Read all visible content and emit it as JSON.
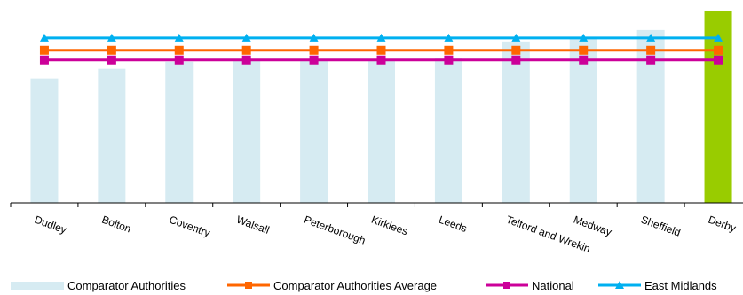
{
  "chart_data": {
    "type": "bar",
    "categories": [
      "Dudley",
      "Bolton",
      "Coventry",
      "Walsall",
      "Peterborough",
      "Kirklees",
      "Leeds",
      "Telford and Wrekin",
      "Medway",
      "Sheffield",
      "Derby"
    ],
    "series": [
      {
        "name": "Comparator Authorities",
        "kind": "bar",
        "color": "#d6ebf2",
        "values": [
          141,
          152,
          160,
          161,
          162,
          163,
          164,
          183,
          186,
          196,
          null
        ]
      },
      {
        "name": "Derby",
        "kind": "bar-highlight",
        "color": "#99cc00",
        "values": [
          null,
          null,
          null,
          null,
          null,
          null,
          null,
          null,
          null,
          null,
          218
        ]
      },
      {
        "name": "Comparator Authorities Average",
        "kind": "line",
        "color": "#ff6600",
        "marker": "square",
        "values": [
          173,
          173,
          173,
          173,
          173,
          173,
          173,
          173,
          173,
          173,
          173
        ]
      },
      {
        "name": "National",
        "kind": "line",
        "color": "#cc0099",
        "marker": "square",
        "values": [
          162,
          162,
          162,
          162,
          162,
          162,
          162,
          162,
          162,
          162,
          162
        ]
      },
      {
        "name": "East Midlands",
        "kind": "line",
        "color": "#00b0f0",
        "marker": "triangle",
        "values": [
          187,
          187,
          187,
          187,
          187,
          187,
          187,
          187,
          187,
          187,
          187
        ]
      }
    ],
    "ylim": [
      0,
      220
    ],
    "grid": false,
    "legend_position": "bottom"
  },
  "legend": [
    {
      "label": "Comparator Authorities",
      "color": "#d6ebf2",
      "marker": "box"
    },
    {
      "label": "Comparator Authorities Average",
      "color": "#ff6600",
      "marker": "square"
    },
    {
      "label": "National",
      "color": "#cc0099",
      "marker": "square"
    },
    {
      "label": "East Midlands",
      "color": "#00b0f0",
      "marker": "triangle"
    }
  ]
}
